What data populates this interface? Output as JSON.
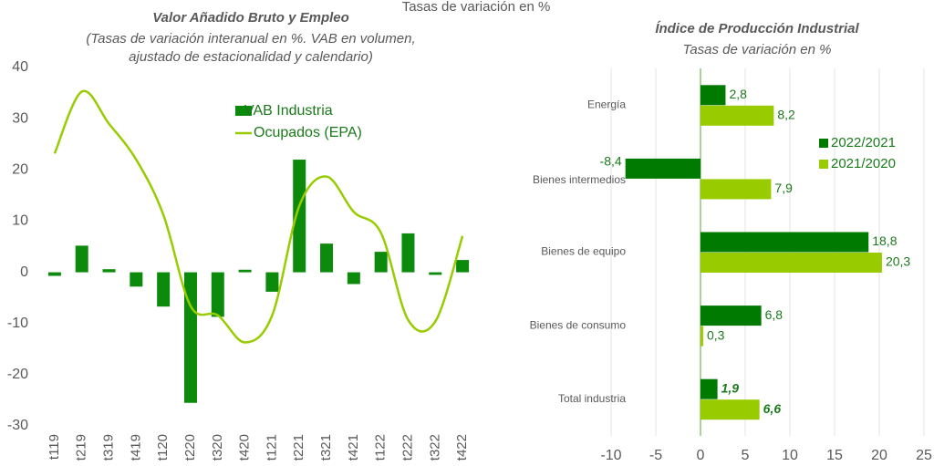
{
  "chart_data": [
    {
      "type": "combo",
      "title": "Valor Añadido Bruto y Empleo",
      "subtitle": [
        "(Tasas de variación interanual en %. VAB en volumen,",
        "ajustado de estacionalidad y calendario)"
      ],
      "annotation": "Tasas de variación en %",
      "categories": [
        "t119",
        "t219",
        "t319",
        "t419",
        "t120",
        "t220",
        "t320",
        "t420",
        "t121",
        "t221",
        "t321",
        "t421",
        "t122",
        "t222",
        "t322",
        "t422"
      ],
      "series": [
        {
          "name": "VAB Industria",
          "type": "bar",
          "color": "#0b8a0b",
          "values": [
            -0.7,
            5.2,
            0.6,
            -2.8,
            -6.7,
            -25.5,
            -8.7,
            0.5,
            -3.8,
            22,
            5.6,
            -2.3,
            4,
            7.6,
            -0.5,
            2.4
          ]
        },
        {
          "name": "Ocupados (EPA)",
          "type": "line",
          "color": "#99cc00",
          "values": [
            23.2,
            35.3,
            29,
            22,
            11.2,
            -6.6,
            -8.4,
            -13.7,
            -8.4,
            13,
            18.7,
            11.8,
            7.7,
            -9.3,
            -9.6,
            7.1
          ]
        }
      ],
      "ylim": [
        -30,
        40
      ],
      "yticks": [
        -30,
        -20,
        -10,
        0,
        10,
        20,
        30,
        40
      ],
      "grid": false
    },
    {
      "type": "hbar",
      "title": "Índice de Producción Industrial",
      "subtitle": "Tasas de variación en %",
      "categories": [
        "Energía",
        "Bienes intermedios",
        "Bienes de equipo",
        "Bienes de consumo",
        "Total industria"
      ],
      "series": [
        {
          "name": "2022/2021",
          "color": "#007a00",
          "values": [
            2.8,
            -8.4,
            18.8,
            6.8,
            1.9
          ],
          "value_labels": [
            "2,8",
            "-8,4",
            "18,8",
            "6,8",
            "1,9"
          ]
        },
        {
          "name": "2021/2020",
          "color": "#99cc00",
          "values": [
            8.2,
            7.9,
            20.3,
            0.3,
            6.6
          ],
          "value_labels": [
            "8,2",
            "7,9",
            "20,3",
            "0,3",
            "6,6"
          ]
        }
      ],
      "xlim": [
        -10,
        25
      ],
      "xticks": [
        -10,
        -5,
        0,
        5,
        10,
        15,
        20,
        25
      ],
      "grid": true
    }
  ]
}
